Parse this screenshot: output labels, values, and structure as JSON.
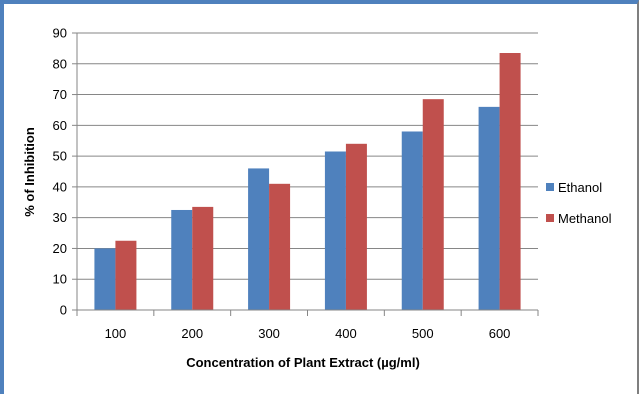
{
  "chart_data": {
    "type": "bar",
    "categories": [
      "100",
      "200",
      "300",
      "400",
      "500",
      "600"
    ],
    "series": [
      {
        "name": "Ethanol",
        "values": [
          20,
          32.5,
          46,
          51.5,
          58,
          66
        ],
        "color": "#4f81bd"
      },
      {
        "name": "Methanol",
        "values": [
          22.5,
          33.5,
          41,
          54,
          68.5,
          83.5
        ],
        "color": "#c0504d"
      }
    ],
    "yticks": [
      "0",
      "10",
      "20",
      "30",
      "40",
      "50",
      "60",
      "70",
      "80",
      "90"
    ],
    "xlabel": "Concentration of Plant Extract (µg/ml)",
    "ylabel": "% of Inhibition",
    "ylim": [
      0,
      90
    ],
    "grid": true,
    "legend_position": "right"
  }
}
